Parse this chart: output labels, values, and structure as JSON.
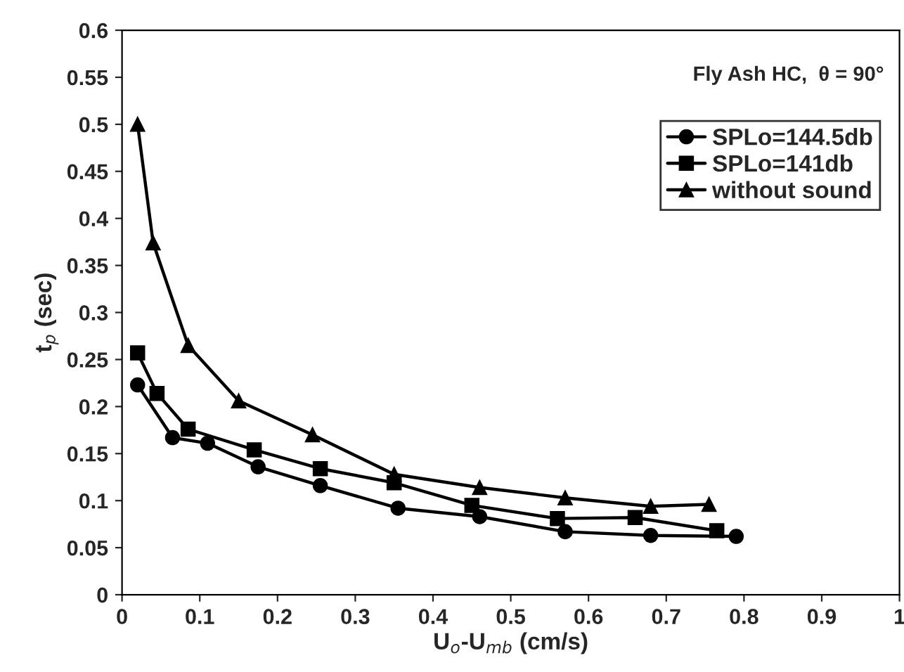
{
  "chart_data": {
    "type": "line",
    "xlabel": "U$_{o}$-U$_{mb}$ (cm/s)",
    "ylabel": "t$_{p}$ (sec)",
    "annotations": [
      "Fly Ash HC,  θ = 90°"
    ],
    "xlim": [
      0,
      1
    ],
    "xticks": [
      0,
      0.1,
      0.2,
      0.3,
      0.4,
      0.5,
      0.6,
      0.7,
      0.8,
      0.9,
      1
    ],
    "ylim": [
      0,
      0.6
    ],
    "yticks": [
      0,
      0.05,
      0.1,
      0.15,
      0.2,
      0.25,
      0.3,
      0.35,
      0.4,
      0.45,
      0.5,
      0.55,
      0.6
    ],
    "grid": false,
    "legend": "top right",
    "line_style": "solid",
    "series": [
      {
        "name": "SPLo=144.5db",
        "color": "#000000",
        "marker": "circle",
        "x": [
          0.02,
          0.065,
          0.11,
          0.175,
          0.255,
          0.355,
          0.46,
          0.57,
          0.68,
          0.79
        ],
        "values": [
          0.223,
          0.167,
          0.161,
          0.136,
          0.116,
          0.092,
          0.083,
          0.067,
          0.063,
          0.062
        ]
      },
      {
        "name": "SPLo=141db",
        "color": "#000000",
        "marker": "square",
        "x": [
          0.02,
          0.045,
          0.085,
          0.17,
          0.255,
          0.35,
          0.45,
          0.56,
          0.66,
          0.765
        ],
        "values": [
          0.257,
          0.214,
          0.176,
          0.154,
          0.134,
          0.119,
          0.095,
          0.081,
          0.082,
          0.068
        ]
      },
      {
        "name": "without sound",
        "color": "#000000",
        "marker": "triangle",
        "x": [
          0.02,
          0.04,
          0.085,
          0.15,
          0.245,
          0.35,
          0.46,
          0.57,
          0.68,
          0.755
        ],
        "values": [
          0.5,
          0.374,
          0.265,
          0.206,
          0.17,
          0.128,
          0.114,
          0.103,
          0.094,
          0.096
        ]
      }
    ]
  }
}
